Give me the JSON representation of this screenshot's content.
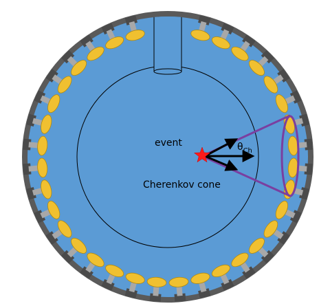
{
  "labels": {
    "event": "event",
    "theta_symbol": "θ",
    "theta_subscript": "Ch",
    "cone": "Cherenkov cone"
  },
  "colors": {
    "water": "#5b9bd5",
    "wall": "#5a5a5a",
    "pmt": "#f0c030",
    "pmt_edge": "#b08a10",
    "mount": "#a8a8a8",
    "bracket": "#4a4a4a",
    "cone": "#7a3fa0",
    "event_star": "#ff1a1a",
    "arrows": "#000000"
  },
  "icons": {
    "pmt": "photomultiplier-tube-icon",
    "event": "star-icon",
    "chimney": "chimney-cylinder-icon"
  }
}
